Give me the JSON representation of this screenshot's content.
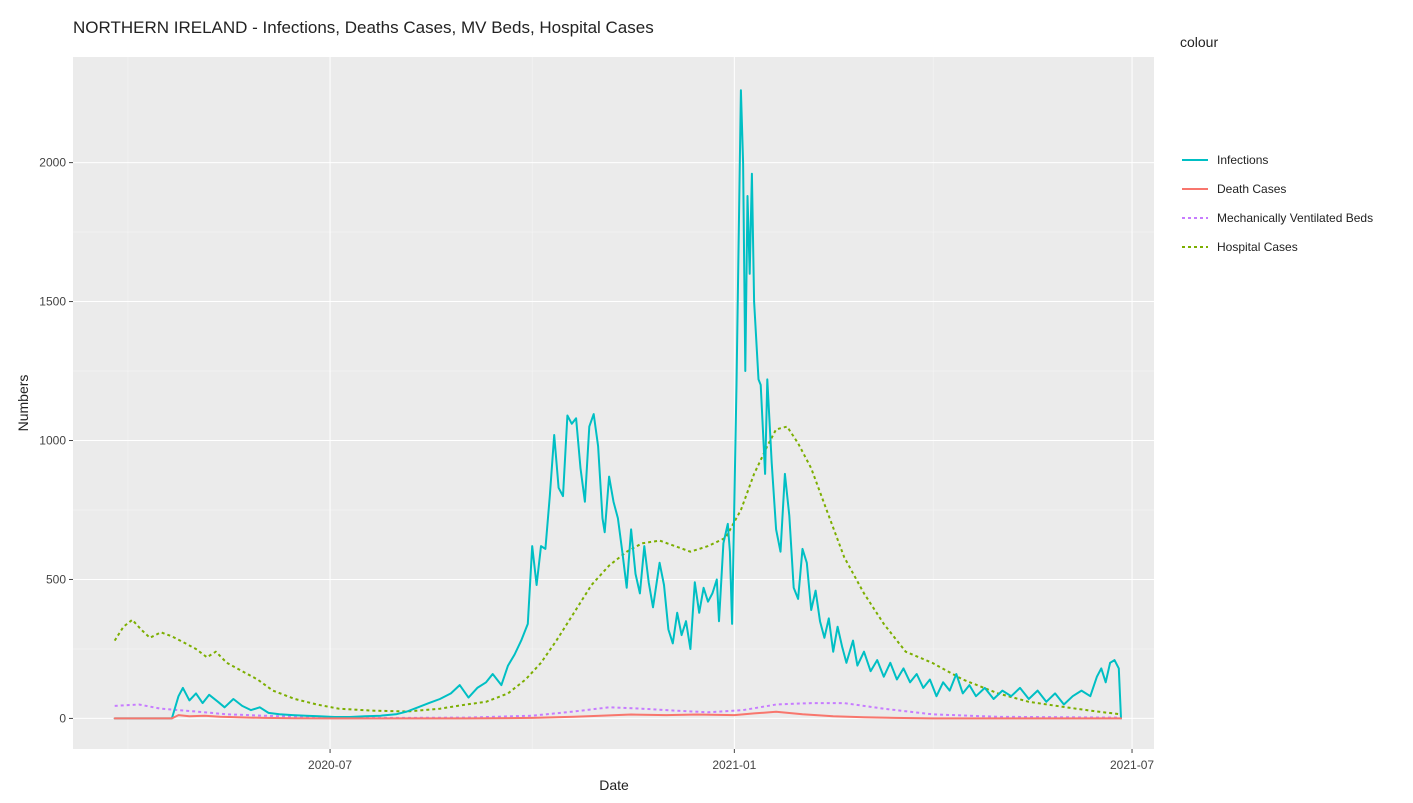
{
  "chart_data": {
    "type": "line",
    "title": "NORTHERN IRELAND - Infections, Deaths Cases, MV Beds, Hospital Cases",
    "xlabel": "Date",
    "ylabel": "Numbers",
    "legend_title": "colour",
    "legend_position": "right",
    "grid": true,
    "xlim": [
      "2020-03-06",
      "2021-07-11"
    ],
    "ylim": [
      -110,
      2380
    ],
    "x_ticks": [
      "2020-07-01",
      "2021-01-01",
      "2021-07-01"
    ],
    "x_tick_labels": [
      "2020-07",
      "2021-01",
      "2021-07"
    ],
    "y_ticks": [
      0,
      500,
      1000,
      1500,
      2000
    ],
    "y_tick_labels": [
      "0",
      "500",
      "1000",
      "1500",
      "2000"
    ],
    "series": [
      {
        "name": "Infections",
        "color": "#00BFC4",
        "dash": "solid",
        "points": [
          [
            "2020-03-25",
            0
          ],
          [
            "2020-04-20",
            0
          ],
          [
            "2020-04-23",
            80
          ],
          [
            "2020-04-25",
            110
          ],
          [
            "2020-04-28",
            65
          ],
          [
            "2020-05-01",
            90
          ],
          [
            "2020-05-04",
            55
          ],
          [
            "2020-05-07",
            85
          ],
          [
            "2020-05-11",
            60
          ],
          [
            "2020-05-14",
            40
          ],
          [
            "2020-05-18",
            70
          ],
          [
            "2020-05-22",
            45
          ],
          [
            "2020-05-26",
            30
          ],
          [
            "2020-05-30",
            40
          ],
          [
            "2020-06-03",
            20
          ],
          [
            "2020-06-08",
            15
          ],
          [
            "2020-06-14",
            12
          ],
          [
            "2020-06-20",
            10
          ],
          [
            "2020-06-26",
            8
          ],
          [
            "2020-07-03",
            5
          ],
          [
            "2020-07-10",
            5
          ],
          [
            "2020-07-17",
            8
          ],
          [
            "2020-07-24",
            10
          ],
          [
            "2020-07-31",
            15
          ],
          [
            "2020-08-05",
            25
          ],
          [
            "2020-08-10",
            40
          ],
          [
            "2020-08-15",
            55
          ],
          [
            "2020-08-20",
            70
          ],
          [
            "2020-08-25",
            90
          ],
          [
            "2020-08-29",
            120
          ],
          [
            "2020-09-02",
            75
          ],
          [
            "2020-09-06",
            110
          ],
          [
            "2020-09-10",
            130
          ],
          [
            "2020-09-13",
            160
          ],
          [
            "2020-09-17",
            120
          ],
          [
            "2020-09-20",
            190
          ],
          [
            "2020-09-23",
            230
          ],
          [
            "2020-09-26",
            280
          ],
          [
            "2020-09-29",
            340
          ],
          [
            "2020-10-01",
            620
          ],
          [
            "2020-10-03",
            480
          ],
          [
            "2020-10-05",
            620
          ],
          [
            "2020-10-07",
            610
          ],
          [
            "2020-10-09",
            800
          ],
          [
            "2020-10-11",
            1020
          ],
          [
            "2020-10-13",
            830
          ],
          [
            "2020-10-15",
            800
          ],
          [
            "2020-10-17",
            1090
          ],
          [
            "2020-10-19",
            1060
          ],
          [
            "2020-10-21",
            1080
          ],
          [
            "2020-10-23",
            900
          ],
          [
            "2020-10-25",
            780
          ],
          [
            "2020-10-27",
            1050
          ],
          [
            "2020-10-29",
            1095
          ],
          [
            "2020-10-31",
            980
          ],
          [
            "2020-11-02",
            720
          ],
          [
            "2020-11-03",
            670
          ],
          [
            "2020-11-05",
            870
          ],
          [
            "2020-11-07",
            780
          ],
          [
            "2020-11-09",
            720
          ],
          [
            "2020-11-11",
            600
          ],
          [
            "2020-11-13",
            470
          ],
          [
            "2020-11-15",
            680
          ],
          [
            "2020-11-17",
            520
          ],
          [
            "2020-11-19",
            450
          ],
          [
            "2020-11-21",
            620
          ],
          [
            "2020-11-23",
            490
          ],
          [
            "2020-11-25",
            400
          ],
          [
            "2020-11-28",
            560
          ],
          [
            "2020-11-30",
            480
          ],
          [
            "2020-12-02",
            320
          ],
          [
            "2020-12-04",
            270
          ],
          [
            "2020-12-06",
            380
          ],
          [
            "2020-12-08",
            300
          ],
          [
            "2020-12-10",
            350
          ],
          [
            "2020-12-12",
            250
          ],
          [
            "2020-12-14",
            490
          ],
          [
            "2020-12-16",
            380
          ],
          [
            "2020-12-18",
            470
          ],
          [
            "2020-12-20",
            420
          ],
          [
            "2020-12-22",
            450
          ],
          [
            "2020-12-24",
            500
          ],
          [
            "2020-12-25",
            350
          ],
          [
            "2020-12-27",
            630
          ],
          [
            "2020-12-29",
            700
          ],
          [
            "2020-12-30",
            600
          ],
          [
            "2020-12-31",
            340
          ],
          [
            "2021-01-02",
            1200
          ],
          [
            "2021-01-04",
            2260
          ],
          [
            "2021-01-05",
            2000
          ],
          [
            "2021-01-06",
            1250
          ],
          [
            "2021-01-07",
            1880
          ],
          [
            "2021-01-08",
            1600
          ],
          [
            "2021-01-09",
            1960
          ],
          [
            "2021-01-10",
            1500
          ],
          [
            "2021-01-12",
            1220
          ],
          [
            "2021-01-13",
            1200
          ],
          [
            "2021-01-15",
            880
          ],
          [
            "2021-01-16",
            1220
          ],
          [
            "2021-01-18",
            920
          ],
          [
            "2021-01-20",
            680
          ],
          [
            "2021-01-22",
            600
          ],
          [
            "2021-01-24",
            880
          ],
          [
            "2021-01-26",
            730
          ],
          [
            "2021-01-28",
            470
          ],
          [
            "2021-01-30",
            430
          ],
          [
            "2021-02-01",
            610
          ],
          [
            "2021-02-03",
            560
          ],
          [
            "2021-02-05",
            390
          ],
          [
            "2021-02-07",
            460
          ],
          [
            "2021-02-09",
            350
          ],
          [
            "2021-02-11",
            290
          ],
          [
            "2021-02-13",
            360
          ],
          [
            "2021-02-15",
            240
          ],
          [
            "2021-02-17",
            330
          ],
          [
            "2021-02-19",
            260
          ],
          [
            "2021-02-21",
            200
          ],
          [
            "2021-02-24",
            280
          ],
          [
            "2021-02-26",
            190
          ],
          [
            "2021-03-01",
            240
          ],
          [
            "2021-03-04",
            170
          ],
          [
            "2021-03-07",
            210
          ],
          [
            "2021-03-10",
            150
          ],
          [
            "2021-03-13",
            200
          ],
          [
            "2021-03-16",
            140
          ],
          [
            "2021-03-19",
            180
          ],
          [
            "2021-03-22",
            130
          ],
          [
            "2021-03-25",
            160
          ],
          [
            "2021-03-28",
            110
          ],
          [
            "2021-03-31",
            140
          ],
          [
            "2021-04-03",
            80
          ],
          [
            "2021-04-06",
            130
          ],
          [
            "2021-04-09",
            100
          ],
          [
            "2021-04-12",
            160
          ],
          [
            "2021-04-15",
            90
          ],
          [
            "2021-04-18",
            120
          ],
          [
            "2021-04-21",
            80
          ],
          [
            "2021-04-25",
            110
          ],
          [
            "2021-04-29",
            70
          ],
          [
            "2021-05-03",
            100
          ],
          [
            "2021-05-07",
            80
          ],
          [
            "2021-05-11",
            110
          ],
          [
            "2021-05-15",
            70
          ],
          [
            "2021-05-19",
            100
          ],
          [
            "2021-05-23",
            60
          ],
          [
            "2021-05-27",
            90
          ],
          [
            "2021-05-31",
            50
          ],
          [
            "2021-06-04",
            80
          ],
          [
            "2021-06-08",
            100
          ],
          [
            "2021-06-12",
            80
          ],
          [
            "2021-06-15",
            150
          ],
          [
            "2021-06-17",
            180
          ],
          [
            "2021-06-19",
            130
          ],
          [
            "2021-06-21",
            200
          ],
          [
            "2021-06-23",
            210
          ],
          [
            "2021-06-25",
            180
          ],
          [
            "2021-06-26",
            0
          ]
        ]
      },
      {
        "name": "Death Cases",
        "color": "#F8766D",
        "dash": "solid",
        "points": [
          [
            "2020-03-25",
            0
          ],
          [
            "2020-04-20",
            0
          ],
          [
            "2020-04-23",
            12
          ],
          [
            "2020-04-28",
            8
          ],
          [
            "2020-05-05",
            10
          ],
          [
            "2020-05-12",
            6
          ],
          [
            "2020-05-20",
            4
          ],
          [
            "2020-06-01",
            2
          ],
          [
            "2020-06-15",
            1
          ],
          [
            "2020-07-01",
            0
          ],
          [
            "2020-09-01",
            0
          ],
          [
            "2020-10-01",
            2
          ],
          [
            "2020-10-20",
            6
          ],
          [
            "2020-11-01",
            10
          ],
          [
            "2020-11-15",
            14
          ],
          [
            "2020-12-01",
            12
          ],
          [
            "2020-12-15",
            14
          ],
          [
            "2021-01-01",
            12
          ],
          [
            "2021-01-10",
            18
          ],
          [
            "2021-01-20",
            24
          ],
          [
            "2021-02-01",
            15
          ],
          [
            "2021-02-15",
            8
          ],
          [
            "2021-03-01",
            4
          ],
          [
            "2021-03-15",
            2
          ],
          [
            "2021-04-01",
            0
          ],
          [
            "2021-06-26",
            0
          ]
        ]
      },
      {
        "name": "Mechanically Ventilated Beds",
        "color": "#C77CFF",
        "dash": "dot",
        "points": [
          [
            "2020-03-25",
            45
          ],
          [
            "2020-04-05",
            50
          ],
          [
            "2020-04-15",
            35
          ],
          [
            "2020-05-01",
            25
          ],
          [
            "2020-05-15",
            15
          ],
          [
            "2020-06-01",
            10
          ],
          [
            "2020-06-15",
            6
          ],
          [
            "2020-07-01",
            3
          ],
          [
            "2020-08-01",
            2
          ],
          [
            "2020-09-01",
            3
          ],
          [
            "2020-10-01",
            10
          ],
          [
            "2020-10-20",
            25
          ],
          [
            "2020-11-05",
            40
          ],
          [
            "2020-11-20",
            35
          ],
          [
            "2020-12-05",
            28
          ],
          [
            "2020-12-20",
            22
          ],
          [
            "2021-01-05",
            30
          ],
          [
            "2021-01-20",
            50
          ],
          [
            "2021-02-05",
            55
          ],
          [
            "2021-02-20",
            55
          ],
          [
            "2021-03-10",
            35
          ],
          [
            "2021-04-01",
            15
          ],
          [
            "2021-05-01",
            6
          ],
          [
            "2021-06-26",
            3
          ]
        ]
      },
      {
        "name": "Hospital Cases",
        "color": "#7CAE00",
        "dash": "dot",
        "points": [
          [
            "2020-03-25",
            280
          ],
          [
            "2020-03-29",
            330
          ],
          [
            "2020-04-02",
            355
          ],
          [
            "2020-04-06",
            320
          ],
          [
            "2020-04-10",
            290
          ],
          [
            "2020-04-15",
            310
          ],
          [
            "2020-04-20",
            295
          ],
          [
            "2020-04-25",
            275
          ],
          [
            "2020-05-01",
            250
          ],
          [
            "2020-05-06",
            220
          ],
          [
            "2020-05-10",
            240
          ],
          [
            "2020-05-15",
            200
          ],
          [
            "2020-05-22",
            170
          ],
          [
            "2020-05-29",
            140
          ],
          [
            "2020-06-05",
            100
          ],
          [
            "2020-06-15",
            70
          ],
          [
            "2020-06-25",
            50
          ],
          [
            "2020-07-05",
            35
          ],
          [
            "2020-07-20",
            28
          ],
          [
            "2020-08-05",
            25
          ],
          [
            "2020-08-20",
            35
          ],
          [
            "2020-09-01",
            50
          ],
          [
            "2020-09-10",
            60
          ],
          [
            "2020-09-20",
            90
          ],
          [
            "2020-09-28",
            140
          ],
          [
            "2020-10-05",
            200
          ],
          [
            "2020-10-12",
            280
          ],
          [
            "2020-10-20",
            380
          ],
          [
            "2020-10-28",
            480
          ],
          [
            "2020-11-05",
            550
          ],
          [
            "2020-11-13",
            600
          ],
          [
            "2020-11-20",
            630
          ],
          [
            "2020-11-28",
            640
          ],
          [
            "2020-12-05",
            620
          ],
          [
            "2020-12-12",
            600
          ],
          [
            "2020-12-20",
            620
          ],
          [
            "2020-12-28",
            650
          ],
          [
            "2021-01-04",
            750
          ],
          [
            "2021-01-10",
            880
          ],
          [
            "2021-01-16",
            980
          ],
          [
            "2021-01-20",
            1040
          ],
          [
            "2021-01-25",
            1050
          ],
          [
            "2021-01-30",
            990
          ],
          [
            "2021-02-05",
            900
          ],
          [
            "2021-02-12",
            750
          ],
          [
            "2021-02-20",
            580
          ],
          [
            "2021-03-01",
            450
          ],
          [
            "2021-03-10",
            340
          ],
          [
            "2021-03-20",
            240
          ],
          [
            "2021-04-01",
            200
          ],
          [
            "2021-04-15",
            140
          ],
          [
            "2021-05-01",
            90
          ],
          [
            "2021-05-15",
            60
          ],
          [
            "2021-06-01",
            40
          ],
          [
            "2021-06-15",
            25
          ],
          [
            "2021-06-26",
            15
          ]
        ]
      }
    ]
  }
}
